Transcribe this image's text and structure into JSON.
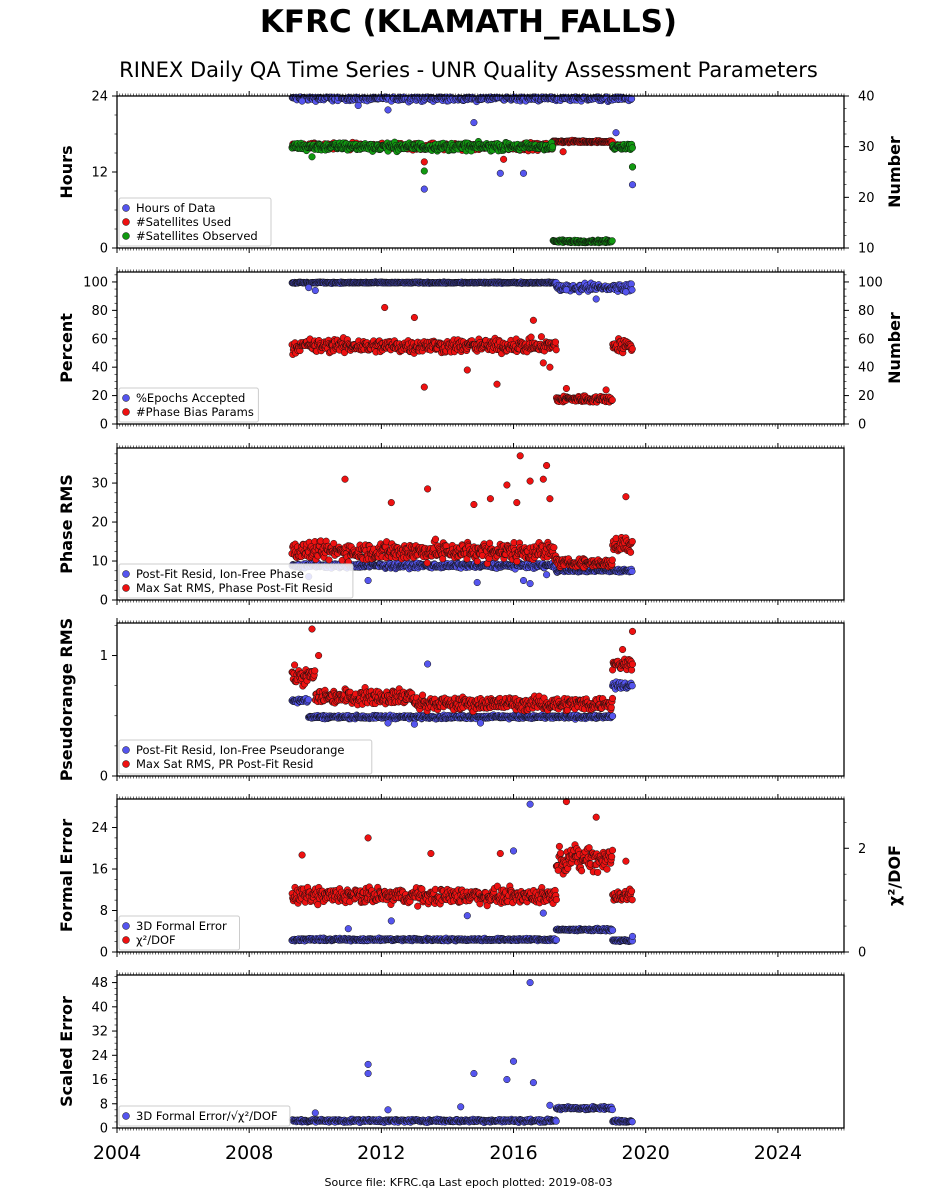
{
  "header": {
    "title": "KFRC (KLAMATH_FALLS)",
    "subtitle": "RINEX Daily QA Time Series - UNR Quality Assessment Parameters"
  },
  "footer": {
    "text": "Source file: KFRC.qa Last epoch plotted: 2019-08-03"
  },
  "colors": {
    "blue": "#5555ee",
    "red": "#ee1111",
    "green": "#119911",
    "edge": "#111111"
  },
  "chart_data": [
    {
      "type": "scatter",
      "ylabel": "Hours",
      "y2label": "Number",
      "xlim": [
        2004,
        2026
      ],
      "ylim": [
        0,
        24
      ],
      "y2lim": [
        10,
        40
      ],
      "xticks": [
        2004,
        2008,
        2012,
        2016,
        2020,
        2024
      ],
      "xtick_labels_shown": false,
      "yticks": [
        0,
        12,
        24
      ],
      "ytick_labels": [
        "0",
        "12",
        "24"
      ],
      "y2ticks": [
        10,
        20,
        30,
        40
      ],
      "y2tick_labels": [
        "10",
        "20",
        "30",
        "40"
      ],
      "legend": "lower-left",
      "series": [
        {
          "name": "Hours of Data",
          "color": "blue",
          "axis": "left",
          "segments": [
            [
              2009.3,
              2019.6,
              23.7,
              0.7
            ]
          ],
          "outliers": [
            [
              2009.6,
              23.2
            ],
            [
              2011.3,
              22.5
            ],
            [
              2012.2,
              21.8
            ],
            [
              2013.3,
              9.3
            ],
            [
              2014.8,
              19.8
            ],
            [
              2015.6,
              11.8
            ],
            [
              2016.3,
              11.8
            ],
            [
              2019.1,
              18.2
            ],
            [
              2019.6,
              10.0
            ]
          ]
        },
        {
          "name": "#Satellites Used",
          "color": "red",
          "axis": "right",
          "segments": [
            [
              2009.3,
              2017.2,
              30.0,
              1.0
            ],
            [
              2017.2,
              2019.0,
              31.0,
              0.3
            ],
            [
              2019.0,
              2019.6,
              30.0,
              0.8
            ]
          ],
          "outliers": [
            [
              2013.3,
              27.0
            ],
            [
              2015.7,
              27.5
            ],
            [
              2017.5,
              29.0
            ],
            [
              2019.6,
              26.0
            ]
          ]
        },
        {
          "name": "#Satellites Observed",
          "color": "green",
          "axis": "right",
          "segments": [
            [
              2009.3,
              2017.2,
              30.0,
              1.1
            ],
            [
              2017.2,
              2019.0,
              11.3,
              0.4
            ],
            [
              2019.0,
              2019.6,
              30.0,
              0.9
            ]
          ],
          "outliers": [
            [
              2009.9,
              28.0
            ],
            [
              2013.3,
              25.2
            ],
            [
              2019.6,
              26.0
            ]
          ]
        }
      ]
    },
    {
      "type": "scatter",
      "ylabel": "Percent",
      "y2label": "Number",
      "xlim": [
        2004,
        2026
      ],
      "ylim": [
        0,
        107
      ],
      "y2lim": [
        0,
        107
      ],
      "xticks": [
        2004,
        2008,
        2012,
        2016,
        2020,
        2024
      ],
      "xtick_labels_shown": false,
      "yticks": [
        0,
        20,
        40,
        60,
        80,
        100
      ],
      "ytick_labels": [
        "0",
        "20",
        "40",
        "60",
        "80",
        "100"
      ],
      "y2ticks": [
        0,
        20,
        40,
        60,
        80,
        100
      ],
      "y2tick_labels": [
        "0",
        "20",
        "40",
        "60",
        "80",
        "100"
      ],
      "legend": "lower-left",
      "series": [
        {
          "name": "%Epochs Accepted",
          "color": "blue",
          "axis": "left",
          "segments": [
            [
              2009.3,
              2017.3,
              99.5,
              0.6
            ],
            [
              2017.3,
              2019.6,
              96.0,
              4.0
            ]
          ],
          "outliers": [
            [
              2009.8,
              96.0
            ],
            [
              2010.0,
              94.0
            ],
            [
              2017.6,
              94.5
            ],
            [
              2018.5,
              88.0
            ],
            [
              2019.4,
              93.0
            ]
          ]
        },
        {
          "name": "#Phase Bias Params",
          "color": "red",
          "axis": "right",
          "segments": [
            [
              2009.3,
              2017.3,
              55.0,
              7.0
            ],
            [
              2017.3,
              2019.0,
              17.5,
              3.5
            ],
            [
              2019.0,
              2019.6,
              55.0,
              7.0
            ]
          ],
          "outliers": [
            [
              2012.1,
              82.0
            ],
            [
              2013.3,
              26.0
            ],
            [
              2013.0,
              75.0
            ],
            [
              2015.5,
              28.0
            ],
            [
              2014.6,
              38.0
            ],
            [
              2016.6,
              73.0
            ],
            [
              2016.9,
              43.0
            ],
            [
              2017.1,
              40.0
            ],
            [
              2017.6,
              25.0
            ],
            [
              2018.8,
              24.0
            ]
          ]
        }
      ]
    },
    {
      "type": "scatter",
      "ylabel": "Phase RMS",
      "xlim": [
        2004,
        2026
      ],
      "ylim": [
        0,
        39
      ],
      "xticks": [
        2004,
        2008,
        2012,
        2016,
        2020,
        2024
      ],
      "xtick_labels_shown": false,
      "yticks": [
        0,
        10,
        20,
        30
      ],
      "ytick_labels": [
        "0",
        "10",
        "20",
        "30"
      ],
      "legend": "lower-left",
      "series": [
        {
          "name": "Post-Fit Resid, Ion-Free Phase",
          "color": "blue",
          "axis": "left",
          "segments": [
            [
              2009.3,
              2017.3,
              8.8,
              0.9
            ],
            [
              2017.3,
              2019.6,
              7.6,
              0.6
            ]
          ],
          "outliers": [
            [
              2009.8,
              6.0
            ],
            [
              2011.6,
              5.0
            ],
            [
              2014.9,
              4.5
            ],
            [
              2016.3,
              5.0
            ],
            [
              2016.5,
              4.2
            ],
            [
              2017.0,
              6.5
            ]
          ]
        },
        {
          "name": "Max Sat RMS, Phase Post-Fit Resid",
          "color": "red",
          "axis": "left",
          "segments": [
            [
              2009.3,
              2017.3,
              12.5,
              3.5
            ],
            [
              2017.3,
              2019.0,
              9.5,
              1.5
            ],
            [
              2019.0,
              2019.6,
              14.0,
              3.5
            ]
          ],
          "outliers": [
            [
              2010.9,
              31.0
            ],
            [
              2013.4,
              28.5
            ],
            [
              2015.8,
              29.5
            ],
            [
              2016.1,
              25.0
            ],
            [
              2016.2,
              37.0
            ],
            [
              2016.5,
              30.5
            ],
            [
              2016.9,
              31.0
            ],
            [
              2017.0,
              34.5
            ],
            [
              2017.1,
              26.0
            ],
            [
              2019.4,
              26.5
            ],
            [
              2012.3,
              25.0
            ],
            [
              2014.8,
              24.5
            ],
            [
              2015.3,
              26.0
            ]
          ]
        }
      ]
    },
    {
      "type": "scatter",
      "ylabel": "Pseudorange RMS",
      "xlim": [
        2004,
        2026
      ],
      "ylim": [
        0,
        1.27
      ],
      "xticks": [
        2004,
        2008,
        2012,
        2016,
        2020,
        2024
      ],
      "xtick_labels_shown": false,
      "yticks": [
        0,
        1
      ],
      "ytick_labels": [
        "0",
        "1"
      ],
      "legend": "lower-left",
      "series": [
        {
          "name": "Post-Fit Resid, Ion-Free Pseudorange",
          "color": "blue",
          "axis": "left",
          "segments": [
            [
              2009.3,
              2009.8,
              0.63,
              0.03
            ],
            [
              2009.8,
              2019.0,
              0.49,
              0.02
            ],
            [
              2019.0,
              2019.6,
              0.75,
              0.04
            ]
          ],
          "outliers": [
            [
              2013.4,
              0.93
            ],
            [
              2012.2,
              0.44
            ],
            [
              2013.0,
              0.43
            ],
            [
              2015.0,
              0.44
            ]
          ]
        },
        {
          "name": "Max Sat RMS, PR Post-Fit Resid",
          "color": "red",
          "axis": "left",
          "segments": [
            [
              2009.3,
              2010.0,
              0.83,
              0.1
            ],
            [
              2010.0,
              2013.0,
              0.66,
              0.09
            ],
            [
              2013.0,
              2019.0,
              0.6,
              0.08
            ],
            [
              2019.0,
              2019.6,
              0.93,
              0.08
            ]
          ],
          "outliers": [
            [
              2009.9,
              1.22
            ],
            [
              2019.6,
              1.2
            ],
            [
              2010.1,
              1.0
            ],
            [
              2019.3,
              1.05
            ]
          ]
        }
      ]
    },
    {
      "type": "scatter",
      "ylabel": "Formal Error",
      "y2label": "χ²/DOF",
      "xlim": [
        2004,
        2026
      ],
      "ylim": [
        0,
        29.5
      ],
      "y2lim": [
        0,
        2.95
      ],
      "xticks": [
        2004,
        2008,
        2012,
        2016,
        2020,
        2024
      ],
      "xtick_labels_shown": false,
      "yticks": [
        0,
        8,
        16,
        24
      ],
      "ytick_labels": [
        "0",
        "8",
        "16",
        "24"
      ],
      "y2ticks": [
        0,
        2
      ],
      "y2tick_labels": [
        "0",
        "2"
      ],
      "legend": "lower-left",
      "series": [
        {
          "name": "3D Formal Error",
          "color": "blue",
          "axis": "left",
          "segments": [
            [
              2009.3,
              2017.3,
              2.4,
              0.35
            ],
            [
              2017.3,
              2019.0,
              4.3,
              0.3
            ],
            [
              2019.0,
              2019.6,
              2.2,
              0.25
            ]
          ],
          "outliers": [
            [
              2016.5,
              28.5
            ],
            [
              2016.0,
              19.5
            ],
            [
              2014.6,
              7.0
            ],
            [
              2016.9,
              7.5
            ],
            [
              2012.3,
              6.0
            ],
            [
              2011.0,
              4.5
            ],
            [
              2019.6,
              3.0
            ]
          ]
        },
        {
          "name": "χ²/DOF",
          "color": "red",
          "axis": "right",
          "segments": [
            [
              2009.3,
              2017.3,
              1.08,
              0.22
            ],
            [
              2017.3,
              2019.0,
              1.8,
              0.35
            ],
            [
              2019.0,
              2019.6,
              1.08,
              0.2
            ]
          ],
          "outliers": [
            [
              2009.6,
              1.87
            ],
            [
              2011.6,
              2.2
            ],
            [
              2013.5,
              1.9
            ],
            [
              2015.6,
              1.9
            ],
            [
              2017.6,
              2.9
            ],
            [
              2018.5,
              2.6
            ],
            [
              2019.4,
              1.75
            ]
          ]
        }
      ]
    },
    {
      "type": "scatter",
      "ylabel": "Scaled Error",
      "xlim": [
        2004,
        2026
      ],
      "ylim": [
        0,
        50.5
      ],
      "xticks": [
        2004,
        2008,
        2012,
        2016,
        2020,
        2024
      ],
      "xtick_labels": [
        "2004",
        "2008",
        "2012",
        "2016",
        "2020",
        "2024"
      ],
      "xtick_labels_shown": true,
      "yticks": [
        0,
        8,
        16,
        24,
        32,
        40,
        48
      ],
      "ytick_labels": [
        "0",
        "8",
        "16",
        "24",
        "32",
        "40",
        "48"
      ],
      "legend": "lower-left",
      "series": [
        {
          "name": "3D Formal Error/√χ²/DOF",
          "color": "blue",
          "axis": "left",
          "segments": [
            [
              2009.3,
              2017.3,
              2.4,
              0.7
            ],
            [
              2017.3,
              2019.0,
              6.5,
              0.8
            ],
            [
              2019.0,
              2019.6,
              2.3,
              0.6
            ]
          ],
          "outliers": [
            [
              2016.5,
              48.0
            ],
            [
              2016.0,
              22.0
            ],
            [
              2011.6,
              21.0
            ],
            [
              2011.6,
              18.0
            ],
            [
              2014.8,
              18.0
            ],
            [
              2015.8,
              16.0
            ],
            [
              2016.6,
              15.0
            ],
            [
              2012.2,
              6.0
            ],
            [
              2014.4,
              7.0
            ],
            [
              2010.0,
              5.0
            ],
            [
              2017.1,
              7.5
            ]
          ]
        }
      ]
    }
  ]
}
